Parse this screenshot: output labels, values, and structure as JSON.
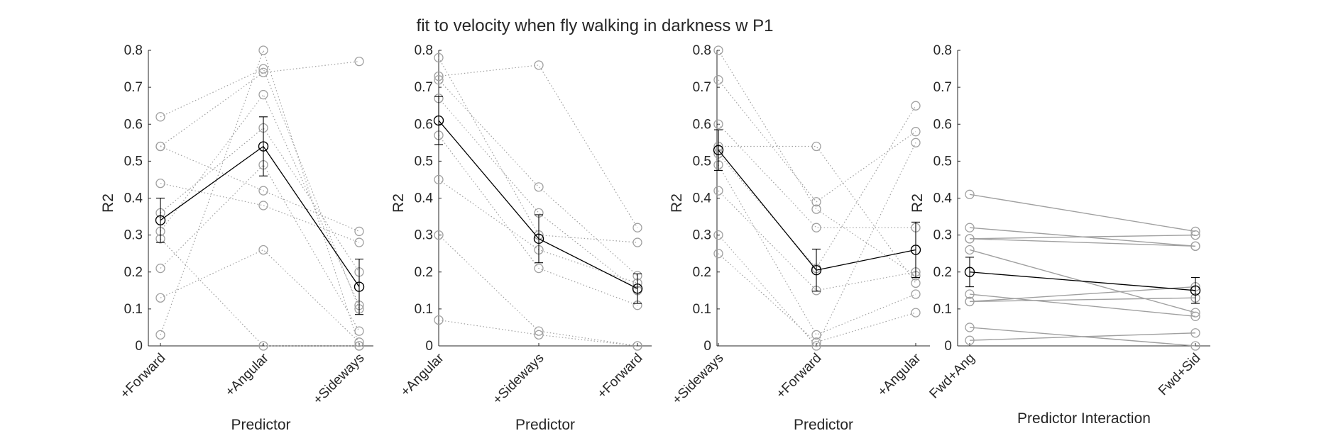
{
  "title": "fit to velocity when fly walking in darkness w P1",
  "colors": {
    "individual": "#a0a0a0",
    "mean": "#000000",
    "axis": "#262626"
  },
  "chart_data": [
    {
      "type": "line",
      "ylabel": "R2",
      "xlabel": "Predictor",
      "ylim": [
        0,
        0.8
      ],
      "yticks": [
        "0",
        "0.1",
        "0.2",
        "0.3",
        "0.4",
        "0.5",
        "0.6",
        "0.7",
        "0.8"
      ],
      "categories": [
        "+Forward",
        "+Angular",
        "+Sideways"
      ],
      "individual_style": "dotted",
      "individuals": [
        [
          0.62,
          0.75,
          0.1
        ],
        [
          0.54,
          0.74,
          0.77
        ],
        [
          0.54,
          0.42,
          0.31
        ],
        [
          0.44,
          0.38,
          0.28
        ],
        [
          0.36,
          0.59,
          0.2
        ],
        [
          0.31,
          0.68,
          0.11
        ],
        [
          0.21,
          0.49,
          0.04
        ],
        [
          0.13,
          0.26,
          0.01
        ],
        [
          0.03,
          0.8,
          0.0
        ],
        [
          0.29,
          0.0,
          0.0
        ]
      ],
      "mean": [
        0.34,
        0.54,
        0.16
      ],
      "error": [
        0.06,
        0.08,
        0.075
      ]
    },
    {
      "type": "line",
      "ylabel": "R2",
      "xlabel": "Predictor",
      "ylim": [
        0,
        0.8
      ],
      "yticks": [
        "0",
        "0.1",
        "0.2",
        "0.3",
        "0.4",
        "0.5",
        "0.6",
        "0.7",
        "0.8"
      ],
      "categories": [
        "+Angular",
        "+Sideways",
        "+Forward"
      ],
      "individual_style": "dotted",
      "individuals": [
        [
          0.78,
          0.3,
          0.28
        ],
        [
          0.73,
          0.76,
          0.32
        ],
        [
          0.72,
          0.43,
          0.19
        ],
        [
          0.67,
          0.36,
          0.15
        ],
        [
          0.57,
          0.21,
          0.11
        ],
        [
          0.45,
          0.26,
          0.17
        ],
        [
          0.3,
          0.04,
          0.0
        ],
        [
          0.07,
          0.03,
          0.0
        ]
      ],
      "mean": [
        0.61,
        0.29,
        0.155
      ],
      "error": [
        0.065,
        0.065,
        0.04
      ]
    },
    {
      "type": "line",
      "ylabel": "R2",
      "xlabel": "Predictor",
      "ylim": [
        0,
        0.8
      ],
      "yticks": [
        "0",
        "0.1",
        "0.2",
        "0.3",
        "0.4",
        "0.5",
        "0.6",
        "0.7",
        "0.8"
      ],
      "categories": [
        "+Sideways",
        "+Forward",
        "+Angular"
      ],
      "individual_style": "dotted",
      "individuals": [
        [
          0.8,
          0.37,
          0.19
        ],
        [
          0.72,
          0.39,
          0.58
        ],
        [
          0.6,
          0.32,
          0.32
        ],
        [
          0.54,
          0.54,
          0.17
        ],
        [
          0.52,
          0.21,
          0.65
        ],
        [
          0.49,
          0.03,
          0.14
        ],
        [
          0.42,
          0.15,
          0.2
        ],
        [
          0.3,
          0.0,
          0.55
        ],
        [
          0.25,
          0.01,
          0.09
        ]
      ],
      "mean": [
        0.53,
        0.205,
        0.26
      ],
      "error": [
        0.055,
        0.057,
        0.075
      ]
    },
    {
      "type": "line",
      "ylabel": "R2",
      "xlabel": "Predictor Interaction",
      "ylim": [
        0,
        0.8
      ],
      "yticks": [
        "0",
        "0.1",
        "0.2",
        "0.3",
        "0.4",
        "0.5",
        "0.6",
        "0.7",
        "0.8"
      ],
      "categories": [
        "Fwd+Ang",
        "Fwd+Sid"
      ],
      "individual_style": "solid",
      "individuals": [
        [
          0.41,
          0.31
        ],
        [
          0.32,
          0.27
        ],
        [
          0.29,
          0.3
        ],
        [
          0.29,
          0.27
        ],
        [
          0.26,
          0.09
        ],
        [
          0.14,
          0.08
        ],
        [
          0.12,
          0.16
        ],
        [
          0.12,
          0.13
        ],
        [
          0.05,
          0.0
        ],
        [
          0.015,
          0.035
        ]
      ],
      "mean": [
        0.2,
        0.15
      ],
      "error": [
        0.04,
        0.035
      ]
    }
  ]
}
